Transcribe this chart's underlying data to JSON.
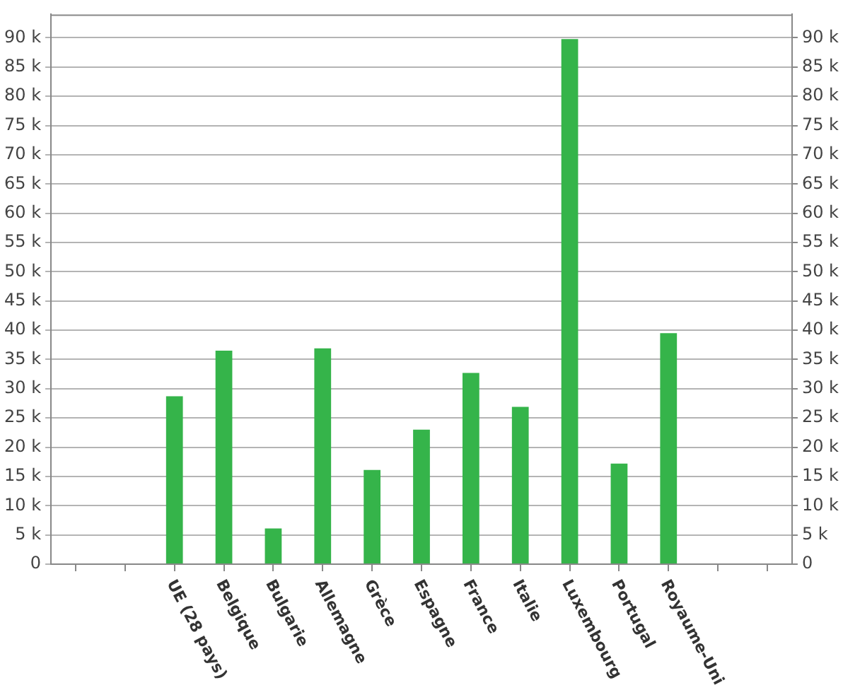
{
  "chart_data": {
    "type": "bar",
    "categories": [
      null,
      null,
      "UE (28 pays)",
      "Belgique",
      "Bulgarie",
      "Allemagne",
      "Grèce",
      "Espagne",
      "France",
      "Italie",
      "Luxembourg",
      "Portugal",
      "Royaume-Uni",
      null,
      null
    ],
    "values": [
      null,
      null,
      28700,
      36500,
      6100,
      36900,
      16100,
      23000,
      32700,
      26900,
      89800,
      17200,
      39500,
      null,
      null
    ],
    "color": "#35b44a",
    "ylim": [
      0,
      94000
    ],
    "yticks": [
      0,
      {
        "value": 5000,
        "label": "5 k"
      },
      {
        "value": 10000,
        "label": "10 k"
      },
      {
        "value": 15000,
        "label": "15 k"
      },
      {
        "value": 20000,
        "label": "20 k"
      },
      {
        "value": 25000,
        "label": "25 k"
      },
      {
        "value": 30000,
        "label": "30 k"
      },
      {
        "value": 35000,
        "label": "35 k"
      },
      {
        "value": 40000,
        "label": "40 k"
      },
      {
        "value": 45000,
        "label": "45 k"
      },
      {
        "value": 50000,
        "label": "50 k"
      },
      {
        "value": 55000,
        "label": "55 k"
      },
      {
        "value": 60000,
        "label": "60 k"
      },
      {
        "value": 65000,
        "label": "65 k"
      },
      {
        "value": 70000,
        "label": "70 k"
      },
      {
        "value": 75000,
        "label": "75 k"
      },
      {
        "value": 80000,
        "label": "80 k"
      },
      {
        "value": 85000,
        "label": "85 k"
      },
      {
        "value": 90000,
        "label": "90 k"
      }
    ],
    "y2lim": [
      0,
      94000
    ],
    "y2ticks": [
      0,
      {
        "value": 5000,
        "label": "5 k"
      },
      {
        "value": 10000,
        "label": "10 k"
      },
      {
        "value": 15000,
        "label": "15 k"
      },
      {
        "value": 20000,
        "label": "20 k"
      },
      {
        "value": 25000,
        "label": "25 k"
      },
      {
        "value": 30000,
        "label": "30 k"
      },
      {
        "value": 35000,
        "label": "35 k"
      },
      {
        "value": 40000,
        "label": "40 k"
      },
      {
        "value": 45000,
        "label": "45 k"
      },
      {
        "value": 50000,
        "label": "50 k"
      },
      {
        "value": 55000,
        "label": "55 k"
      },
      {
        "value": 60000,
        "label": "60 k"
      },
      {
        "value": 65000,
        "label": "65 k"
      },
      {
        "value": 70000,
        "label": "70 k"
      },
      {
        "value": 75000,
        "label": "75 k"
      },
      {
        "value": 80000,
        "label": "80 k"
      },
      {
        "value": 85000,
        "label": "85 k"
      },
      {
        "value": 90000,
        "label": "90 k"
      }
    ],
    "grid": "y",
    "legend": false
  }
}
